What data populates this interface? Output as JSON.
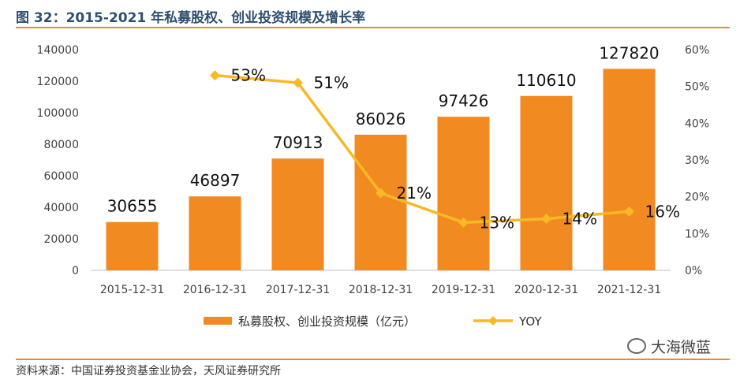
{
  "title": "图 32：2015-2021 年私募股权、创业投资规模及增长率",
  "source": "资料来源：中国证券投资基金业协会，天风证券研究所",
  "watermark": "大海微蓝",
  "colors": {
    "bar": "#f28a22",
    "line": "#f7b924",
    "title": "#2f4f6f",
    "accent": "#e88b2a"
  },
  "chart_data": {
    "type": "bar",
    "categories": [
      "2015-12-31",
      "2016-12-31",
      "2017-12-31",
      "2018-12-31",
      "2019-12-31",
      "2020-12-31",
      "2021-12-31"
    ],
    "series": [
      {
        "name": "私募股权、创业投资规模（亿元）",
        "type": "bar",
        "axis": "left",
        "values": [
          30655,
          46897,
          70913,
          86026,
          97426,
          110610,
          127820
        ],
        "labels": [
          "30655",
          "46897",
          "70913",
          "86026",
          "97426",
          "110610",
          "127820"
        ]
      },
      {
        "name": "YOY",
        "type": "line",
        "axis": "right",
        "values": [
          null,
          53,
          51,
          21,
          13,
          14,
          16
        ],
        "labels": [
          "",
          "53%",
          "51%",
          "21%",
          "13%",
          "14%",
          "16%"
        ]
      }
    ],
    "y_left": {
      "min": 0,
      "max": 140000,
      "ticks": [
        "0",
        "20000",
        "40000",
        "60000",
        "80000",
        "100000",
        "120000",
        "140000"
      ]
    },
    "y_right": {
      "min": 0,
      "max": 60,
      "ticks": [
        "0%",
        "10%",
        "20%",
        "30%",
        "40%",
        "50%",
        "60%"
      ]
    },
    "legend": "bottom",
    "grid": false
  }
}
